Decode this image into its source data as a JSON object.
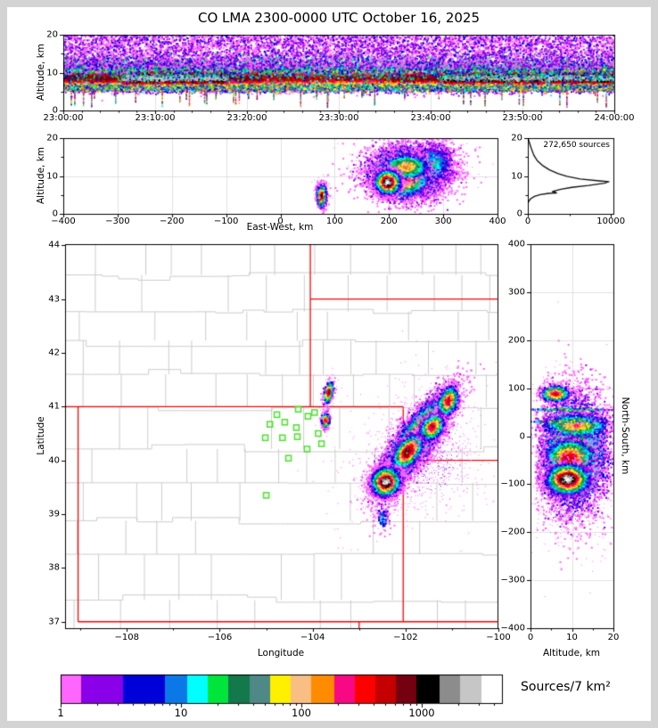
{
  "title": "CO LMA 2300-0000 UTC October 16, 2025",
  "chart_data": {
    "type": "heatmap",
    "description": "Lightning Mapping Array source-density composite: time-height strip, east-west height cross-section, altitude histogram, plan-view map with state/county borders and station markers, north-south height cross-section, logarithmic color scale",
    "total_sources": 272650,
    "colorbar": {
      "label": "Sources/7 km²",
      "scale": "log",
      "min": 1,
      "max": 4600,
      "tick_values": [
        1,
        10,
        100,
        1000
      ],
      "tick_labels": [
        "1",
        "10",
        "100",
        "1000"
      ],
      "colors": [
        "#ff66ff",
        "#8a00e8",
        "#0000d8",
        "#0b78e8",
        "#00ffff",
        "#00e53c",
        "#13784b",
        "#4e8987",
        "#fff000",
        "#f8be84",
        "#ff8c00",
        "#f80884",
        "#fc0000",
        "#c40000",
        "#740010",
        "#000000",
        "#8c8c8c",
        "#c6c6c6",
        "#ffffff"
      ],
      "segment_weights": [
        23,
        47,
        47,
        25,
        23,
        23,
        24,
        23,
        23,
        23,
        26,
        23,
        23,
        23,
        23,
        26,
        23,
        24,
        23
      ]
    },
    "panels": {
      "time_height": {
        "ylabel": "Altitude, km",
        "x_range": [
          0,
          3600
        ],
        "x_tick_values": [
          0,
          600,
          1200,
          1800,
          2400,
          3000,
          3600
        ],
        "x_tick_labels": [
          "23:00:00",
          "23:10:00",
          "23:20:00",
          "23:30:00",
          "23:40:00",
          "23:50:00",
          "24:00:00"
        ],
        "y_range": [
          0,
          20
        ],
        "y_tick_values": [
          0,
          10,
          20
        ],
        "y_tick_labels": [
          "0",
          "10",
          "20"
        ],
        "core_alt": 8.6,
        "core_sigma": 1.75,
        "base_env": 0.82,
        "bursts": [
          {
            "t0": 380,
            "t1": 1080,
            "env": 0.98
          },
          {
            "t0": 2480,
            "t1": 3600,
            "env": 0.95
          }
        ],
        "lull": {
          "t0": 1300,
          "t1": 2150,
          "env": 0.76
        },
        "components": [
          {
            "n": 15000,
            "alt": [
              "norm",
              8.6,
              1.55
            ],
            "mode": "intensity"
          },
          {
            "n": 5000,
            "alt": [
              "norm",
              7.0,
              1.1
            ],
            "mode": "intensity"
          },
          {
            "n": 4500,
            "alt": [
              "norm",
              11.4,
              1.7
            ],
            "mode": "range",
            "lvl": [
              3,
              8
            ]
          },
          {
            "n": 5500,
            "alt": [
              "uniform",
              11,
              20
            ],
            "mode": "range",
            "lvl": [
              1,
              2
            ]
          },
          {
            "n": 1500,
            "alt": [
              "uniform",
              9.5,
              20
            ],
            "mode": "range",
            "lvl": [
              1,
              3
            ]
          },
          {
            "n": 2500,
            "alt": [
              "norm",
              5.9,
              0.5
            ],
            "mode": "range",
            "lvl": [
              2,
              11
            ]
          }
        ],
        "streaks": {
          "n": 58,
          "top": 5.8,
          "max_depth": 4.2
        }
      },
      "east_west_height": {
        "xlabel": "East-West, km",
        "ylabel": "Altitude, km",
        "x_range": [
          -400,
          400
        ],
        "x_tick_values": [
          -400,
          -300,
          -200,
          -100,
          0,
          100,
          200,
          300,
          400
        ],
        "x_tick_labels": [
          "−400",
          "−300",
          "−200",
          "−100",
          "0",
          "100",
          "200",
          "300",
          "400"
        ],
        "y_range": [
          0,
          20
        ],
        "y_tick_values": [
          0,
          10,
          20
        ],
        "y_tick_labels": [
          "0",
          "10",
          "20"
        ],
        "blobs": [
          {
            "cx": 240,
            "cy": 13,
            "sx": 55,
            "sy": 4.5,
            "rot": 0,
            "n": 450,
            "max": 2,
            "jit": 0.6,
            "ps": 1
          },
          {
            "cx": 235,
            "cy": 11,
            "sx": 40,
            "sy": 3.8,
            "rot": 0,
            "n": 5200,
            "max": 8,
            "jit": 1.5,
            "ps": 2,
            "miny": 1.2
          },
          {
            "cx": 282,
            "cy": 13,
            "sx": 22,
            "sy": 3.2,
            "rot": 0,
            "n": 1400,
            "max": 5,
            "jit": 1.2,
            "ps": 2
          },
          {
            "cx": 225,
            "cy": 9.2,
            "sx": 26,
            "sy": 2.6,
            "rot": -4,
            "n": 2200,
            "max": 13,
            "jit": 1.4,
            "ps": 2
          },
          {
            "cx": 232,
            "cy": 12.4,
            "sx": 22,
            "sy": 1.8,
            "rot": 0,
            "n": 900,
            "max": 11,
            "jit": 1.0,
            "ps": 2
          },
          {
            "cx": 198,
            "cy": 8.3,
            "sx": 12,
            "sy": 1.6,
            "rot": 0,
            "n": 2600,
            "max": 19,
            "jit": 1.0,
            "ps": 2
          },
          {
            "cx": 76,
            "cy": 6,
            "sx": 7,
            "sy": 2.4,
            "rot": 0,
            "n": 140,
            "max": 2,
            "jit": 0.6,
            "ps": 1
          },
          {
            "cx": 76,
            "cy": 4.8,
            "sx": 4.5,
            "sy": 1.6,
            "rot": 0,
            "n": 950,
            "max": 15,
            "jit": 1.2,
            "ps": 2,
            "miny": 1.0
          }
        ]
      },
      "histogram": {
        "annotation": "272,650 sources",
        "x_range": [
          0,
          10300
        ],
        "x_tick_values": [
          0,
          10000
        ],
        "x_tick_labels": [
          "0",
          "10000"
        ],
        "y_range": [
          0,
          20
        ],
        "y_tick_values": [
          0,
          10,
          20
        ],
        "y_tick_labels": [
          "0",
          "10",
          "20"
        ],
        "profile": [
          [
            0,
            20
          ],
          [
            160,
            19
          ],
          [
            380,
            17.5
          ],
          [
            720,
            15.5
          ],
          [
            1150,
            14
          ],
          [
            1750,
            12.8
          ],
          [
            2600,
            11.6
          ],
          [
            3650,
            10.6
          ],
          [
            4700,
            9.9
          ],
          [
            6300,
            9.2
          ],
          [
            8600,
            8.7
          ],
          [
            9750,
            8.5
          ],
          [
            9200,
            8.1
          ],
          [
            7300,
            7.5
          ],
          [
            5300,
            7.0
          ],
          [
            4000,
            6.5
          ],
          [
            3250,
            6.1
          ],
          [
            2950,
            5.85
          ],
          [
            3350,
            5.65
          ],
          [
            3450,
            5.5
          ],
          [
            2500,
            5.42
          ],
          [
            1500,
            5.1
          ],
          [
            800,
            4.6
          ],
          [
            350,
            4.0
          ],
          [
            130,
            3.4
          ],
          [
            0,
            3.0
          ]
        ]
      },
      "map": {
        "xlabel": "Longitude",
        "ylabel": "Latitude",
        "x_range": [
          -109.33,
          -100.02
        ],
        "x_tick_values": [
          -108,
          -106,
          -104,
          -102,
          -100
        ],
        "x_tick_labels": [
          "−108",
          "−106",
          "−104",
          "−102",
          "−100"
        ],
        "x_minor_values": [
          -109,
          -107,
          -105,
          -103,
          -101
        ],
        "y_range": [
          36.88,
          44.02
        ],
        "y_tick_values": [
          37,
          38,
          39,
          40,
          41,
          42,
          43,
          44
        ],
        "y_tick_labels": [
          "37",
          "38",
          "39",
          "40",
          "41",
          "42",
          "43",
          "44"
        ],
        "state_border_color": "#ff0000",
        "county_line_color": "#cccccc",
        "station_color": "#55e136",
        "state_borders": [
          [
            -109.33,
            41,
            -102.05,
            41
          ],
          [
            -109.05,
            41,
            -109.05,
            37
          ],
          [
            -109.05,
            37,
            -100.02,
            37
          ],
          [
            -102.05,
            41,
            -102.05,
            37
          ],
          [
            -104.05,
            44.02,
            -104.05,
            41
          ],
          [
            -104.05,
            43,
            -100.02,
            43
          ],
          [
            -102.05,
            40,
            -100.02,
            40
          ],
          [
            -103.0,
            37,
            -103.0,
            36.88
          ]
        ],
        "stations": [
          [
            -104.31,
            40.95
          ],
          [
            -104.77,
            40.85
          ],
          [
            -103.96,
            40.89
          ],
          [
            -104.1,
            40.82
          ],
          [
            -104.92,
            40.67
          ],
          [
            -104.6,
            40.71
          ],
          [
            -104.35,
            40.61
          ],
          [
            -105.02,
            40.42
          ],
          [
            -104.65,
            40.42
          ],
          [
            -104.33,
            40.44
          ],
          [
            -103.81,
            40.31
          ],
          [
            -104.12,
            40.21
          ],
          [
            -104.52,
            40.04
          ],
          [
            -105.0,
            39.35
          ],
          [
            -103.88,
            40.5
          ]
        ],
        "blobs": [
          {
            "cx": -101.9,
            "cy": 40.2,
            "sx": 0.85,
            "sy": 0.5,
            "rot": -52,
            "n": 900,
            "max": 2,
            "jit": 0.6,
            "ps": 1
          },
          {
            "cx": -101.35,
            "cy": 39.95,
            "sx": 0.55,
            "sy": 0.45,
            "rot": -45,
            "n": 400,
            "max": 2,
            "jit": 0.6,
            "ps": 1
          },
          {
            "cx": -101.6,
            "cy": 40.1,
            "sx": 1.15,
            "sy": 0.95,
            "rot": -50,
            "n": 90,
            "max": 1,
            "jit": 0.4,
            "ps": 1
          },
          {
            "cx": -102.5,
            "cy": 38.92,
            "sx": 0.09,
            "sy": 0.14,
            "rot": 0,
            "n": 130,
            "max": 4,
            "jit": 1.2,
            "ps": 2
          },
          {
            "cx": -102.35,
            "cy": 39.25,
            "sx": 0.3,
            "sy": 0.25,
            "rot": -30,
            "n": 110,
            "max": 2,
            "jit": 0.8,
            "ps": 1
          },
          {
            "cx": -101.78,
            "cy": 40.38,
            "sx": 0.6,
            "sy": 0.16,
            "rot": -54,
            "n": 8500,
            "max": 13,
            "jit": 1.6,
            "ps": 2
          },
          {
            "cx": -101.95,
            "cy": 40.16,
            "sx": 0.22,
            "sy": 0.11,
            "rot": -52,
            "n": 3000,
            "max": 16,
            "jit": 1.3,
            "ps": 2
          },
          {
            "cx": -101.42,
            "cy": 40.62,
            "sx": 0.16,
            "sy": 0.1,
            "rot": -54,
            "n": 1700,
            "max": 14,
            "jit": 1.3,
            "ps": 2
          },
          {
            "cx": -101.08,
            "cy": 41.1,
            "sx": 0.17,
            "sy": 0.09,
            "rot": -68,
            "n": 1200,
            "max": 14,
            "jit": 1.3,
            "ps": 2
          },
          {
            "cx": -102.42,
            "cy": 39.6,
            "sx": 0.16,
            "sy": 0.13,
            "rot": -40,
            "n": 4200,
            "max": 19,
            "jit": 1.1,
            "ps": 2
          },
          {
            "cx": -103.7,
            "cy": 40.75,
            "sx": 0.1,
            "sy": 0.16,
            "rot": 0,
            "n": 60,
            "max": 1,
            "jit": 0.5,
            "ps": 1
          },
          {
            "cx": -103.72,
            "cy": 40.74,
            "sx": 0.045,
            "sy": 0.075,
            "rot": 0,
            "n": 300,
            "max": 14,
            "jit": 1.2,
            "ps": 2
          },
          {
            "cx": -103.64,
            "cy": 41.28,
            "sx": 0.1,
            "sy": 0.22,
            "rot": 10,
            "n": 70,
            "max": 1,
            "jit": 0.5,
            "ps": 1
          },
          {
            "cx": -103.66,
            "cy": 41.26,
            "sx": 0.05,
            "sy": 0.11,
            "rot": 12,
            "n": 380,
            "max": 15,
            "jit": 1.2,
            "ps": 2
          }
        ]
      },
      "north_south_height": {
        "xlabel": "Altitude, km",
        "ylabel_right": "North-South, km",
        "x_range": [
          0,
          20
        ],
        "x_tick_values": [
          0,
          10,
          20
        ],
        "x_tick_labels": [
          "0",
          "10",
          "20"
        ],
        "y_range": [
          -400,
          400
        ],
        "y_tick_values": [
          400,
          300,
          200,
          100,
          0,
          -100,
          -200,
          -300,
          -400
        ],
        "y_tick_labels": [
          "400",
          "300",
          "200",
          "100",
          "0",
          "−100",
          "−200",
          "−300",
          "−400"
        ],
        "blobs": [
          {
            "cx": 10,
            "cy": -55,
            "sx": 6.5,
            "sy": 95,
            "rot": 0,
            "n": 750,
            "max": 2,
            "jit": 0.6,
            "ps": 1
          },
          {
            "cx": 9,
            "cy": -160,
            "sx": 4.5,
            "sy": 16,
            "rot": 0,
            "n": 260,
            "max": 2,
            "jit": 0.8,
            "ps": 1
          },
          {
            "cx": 10.5,
            "cy": -35,
            "sx": 4.6,
            "sy": 66,
            "rot": 0,
            "n": 5800,
            "max": 8,
            "jit": 1.5,
            "ps": 2,
            "minx": 1.2
          },
          {
            "cx": 11,
            "cy": 22,
            "sx": 4.2,
            "sy": 13,
            "rot": 0,
            "n": 1100,
            "max": 11,
            "jit": 1.2,
            "ps": 2
          },
          {
            "cx": 9.5,
            "cy": -45,
            "sx": 3.0,
            "sy": 20,
            "rot": 0,
            "n": 1800,
            "max": 14,
            "jit": 1.2,
            "ps": 2
          },
          {
            "cx": 10,
            "cy": 55,
            "sx": 6.5,
            "sy": 1.0,
            "rot": 0,
            "n": 160,
            "max": 9,
            "jit": 2.0,
            "ps": 2
          },
          {
            "cx": 8.5,
            "cy": 30,
            "sx": 5.5,
            "sy": 1.0,
            "rot": 0,
            "n": 130,
            "max": 10,
            "jit": 2.0,
            "ps": 2
          },
          {
            "cx": 9,
            "cy": -90,
            "sx": 2.6,
            "sy": 16,
            "rot": 0,
            "n": 3000,
            "max": 19,
            "jit": 1.1,
            "ps": 2,
            "minx": 1.2
          },
          {
            "cx": 7,
            "cy": 92,
            "sx": 3.5,
            "sy": 13,
            "rot": 0,
            "n": 150,
            "max": 2,
            "jit": 0.6,
            "ps": 1
          },
          {
            "cx": 6,
            "cy": 88,
            "sx": 1.8,
            "sy": 9,
            "rot": 0,
            "n": 650,
            "max": 14,
            "jit": 1.2,
            "ps": 2,
            "minx": 1.2
          }
        ]
      }
    }
  }
}
